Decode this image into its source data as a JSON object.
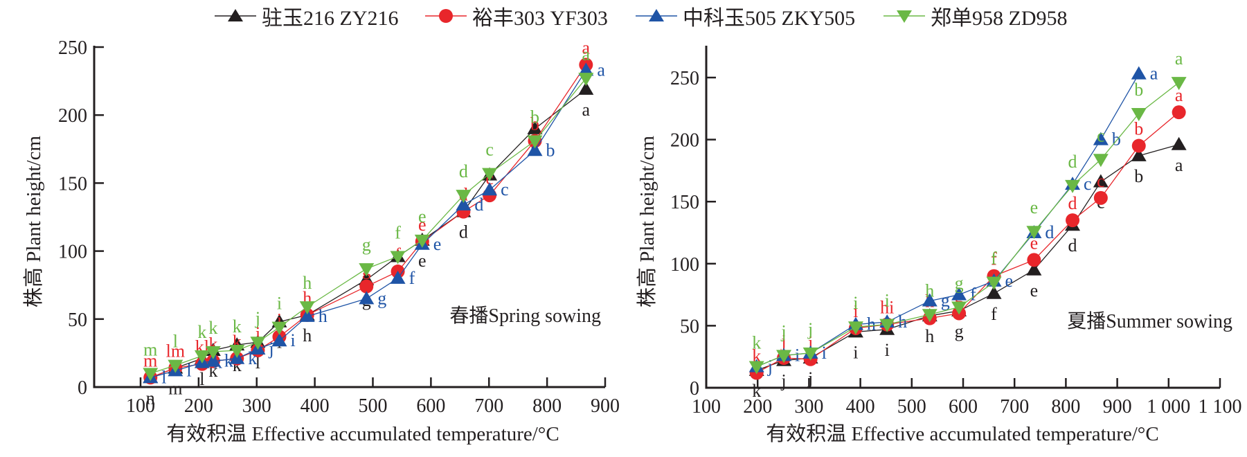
{
  "legend": [
    {
      "name": "驻玉216 ZY216",
      "color": "#231f20",
      "marker": "triangle-up"
    },
    {
      "name": "裕丰303 YF303",
      "color": "#e8262b",
      "marker": "circle"
    },
    {
      "name": "中科玉505 ZKY505",
      "color": "#1f54a6",
      "marker": "triangle-up"
    },
    {
      "name": "郑单958 ZD958",
      "color": "#6ab845",
      "marker": "triangle-down"
    }
  ],
  "chart_data": [
    {
      "type": "line",
      "panel_label": "春播Spring sowing",
      "xlabel": "有效积温 Effective accumulated temperature/°C",
      "ylabel": "株高 Plant height/cm",
      "xlim": [
        20,
        900
      ],
      "ylim": [
        0,
        250
      ],
      "xticks": [
        100,
        200,
        300,
        400,
        500,
        600,
        700,
        800,
        900
      ],
      "xtick_labels": [
        "100",
        "200",
        "300",
        "400",
        "500",
        "600",
        "700",
        "800",
        "900"
      ],
      "yticks": [
        0,
        50,
        100,
        150,
        200,
        250
      ],
      "ytick_labels": [
        "0",
        "50",
        "100",
        "150",
        "200",
        "250"
      ],
      "x": [
        117,
        160,
        206,
        225,
        266,
        302,
        339,
        387,
        489,
        543,
        585,
        656,
        701,
        779,
        867
      ],
      "series": [
        {
          "name": "驻玉216 ZY216",
          "values": [
            7,
            14,
            21,
            27,
            31,
            33,
            48,
            53,
            79,
            96,
            108,
            129,
            156,
            190,
            219
          ],
          "letters": [
            "n",
            "m",
            "l",
            "k",
            "k",
            "l",
            "i",
            "h",
            "g",
            "f",
            "e",
            "d",
            "c",
            "b",
            "a"
          ]
        },
        {
          "name": "裕丰303 YF303",
          "values": [
            7,
            14,
            17,
            19,
            21,
            27,
            37,
            53,
            74,
            85,
            107,
            129,
            141,
            181,
            237
          ],
          "letters": [
            "m",
            "lm",
            "kl",
            "k",
            "k",
            "j",
            "i",
            "h",
            "g",
            "f",
            "e",
            "d",
            "c",
            "b",
            "a"
          ]
        },
        {
          "name": "中科玉505 ZKY505",
          "values": [
            7,
            12,
            18,
            19,
            21,
            28,
            34,
            52,
            65,
            80,
            105,
            134,
            145,
            174,
            233
          ],
          "letters": [
            "l",
            "l",
            "k",
            "k",
            "k",
            "j",
            "i",
            "h",
            "g",
            "f",
            "e",
            "d",
            "c",
            "b",
            "a"
          ]
        },
        {
          "name": "郑单958 ZD958",
          "values": [
            10,
            16,
            23,
            26,
            27,
            33,
            44,
            59,
            87,
            96,
            108,
            141,
            157,
            181,
            227
          ],
          "letters": [
            "m",
            "l",
            "k",
            "k",
            "k",
            "j",
            "i",
            "h",
            "g",
            "f",
            "e",
            "d",
            "c",
            "b",
            "a"
          ]
        }
      ]
    },
    {
      "type": "line",
      "panel_label": "夏播Summer sowing",
      "xlabel": "有效积温 Effective accumulated temperature/°C",
      "ylabel": "株高 Plant height/cm",
      "xlim": [
        100,
        1100
      ],
      "ylim": [
        0,
        275
      ],
      "xticks": [
        100,
        200,
        300,
        400,
        500,
        600,
        700,
        800,
        900,
        1000,
        1100
      ],
      "xtick_labels": [
        "100",
        "200",
        "300",
        "400",
        "500",
        "600",
        "700",
        "800",
        "900",
        "1 000",
        "1 100"
      ],
      "yticks": [
        0,
        50,
        100,
        150,
        200,
        250
      ],
      "ytick_labels": [
        "0",
        "50",
        "100",
        "150",
        "200",
        "250"
      ],
      "x": [
        198,
        251,
        303,
        391,
        452,
        535,
        592,
        660,
        738,
        813,
        868,
        942,
        1020
      ],
      "series": [
        {
          "name": "驻玉216 ZY216",
          "values": [
            14,
            22,
            24,
            45,
            47,
            58,
            62,
            76,
            95,
            131,
            166,
            187,
            196
          ],
          "letters": [
            "k",
            "j",
            "j",
            "i",
            "i",
            "h",
            "g",
            "f",
            "e",
            "d",
            "c",
            "b",
            "a"
          ]
        },
        {
          "name": "裕丰303 YF303",
          "values": [
            12,
            24,
            23,
            48,
            51,
            56,
            60,
            90,
            103,
            135,
            153,
            195,
            222
          ],
          "letters": [
            "k",
            "j",
            "j",
            "i",
            "hi",
            "h",
            "g",
            "f",
            "e",
            "d",
            "c",
            "b",
            "a"
          ]
        },
        {
          "name": "中科玉505 ZKY505",
          "values": [
            17,
            26,
            28,
            51,
            53,
            70,
            75,
            86,
            125,
            164,
            200,
            253,
            null
          ],
          "letters": [
            "j",
            "i",
            "i",
            "h",
            "h",
            "g",
            "f",
            "e",
            "d",
            "c",
            "b",
            "a",
            null
          ]
        },
        {
          "name": "郑单958 ZD958",
          "values": [
            17,
            26,
            28,
            49,
            51,
            59,
            65,
            85,
            126,
            163,
            184,
            221,
            246
          ],
          "letters": [
            "k",
            "j",
            "j",
            "i",
            "i",
            "h",
            "g",
            "f",
            "e",
            "d",
            "c",
            "b",
            "a"
          ]
        }
      ]
    }
  ]
}
